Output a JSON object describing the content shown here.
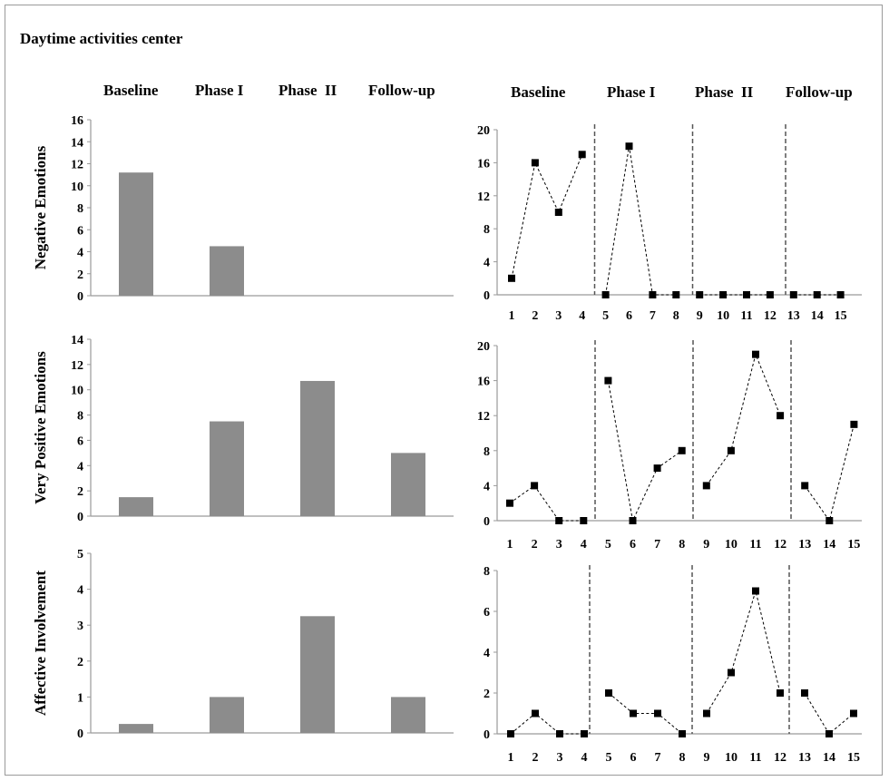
{
  "title": "Daytime activities center",
  "phase_labels": [
    "Baseline",
    "Phase I",
    "Phase  II",
    "Follow-up"
  ],
  "chart_data": [
    {
      "type": "bar",
      "panel": "negative-bar",
      "ylabel": "Negative Emotions",
      "categories": [
        "Baseline",
        "Phase I",
        "Phase  II",
        "Follow-up"
      ],
      "values": [
        11.2,
        4.5,
        0,
        0
      ],
      "ylim": [
        0,
        16
      ],
      "yticks": [
        0,
        2,
        4,
        6,
        8,
        10,
        12,
        14,
        16
      ],
      "color": "#8c8c8c"
    },
    {
      "type": "line",
      "panel": "negative-line",
      "x": [
        1,
        2,
        3,
        4,
        5,
        6,
        7,
        8,
        9,
        10,
        11,
        12,
        13,
        14,
        15
      ],
      "y": [
        2,
        16,
        10,
        17,
        0,
        18,
        0,
        0,
        0,
        0,
        0,
        0,
        0,
        0,
        0
      ],
      "segments": [
        [
          1,
          4
        ],
        [
          5,
          8
        ],
        [
          9,
          12
        ],
        [
          13,
          15
        ]
      ],
      "ylim": [
        0,
        20
      ],
      "yticks": [
        0,
        4,
        8,
        12,
        16,
        20
      ]
    },
    {
      "type": "bar",
      "panel": "positive-bar",
      "ylabel": "Very Positive Emotions",
      "categories": [
        "Baseline",
        "Phase I",
        "Phase  II",
        "Follow-up"
      ],
      "values": [
        1.5,
        7.5,
        10.7,
        5
      ],
      "ylim": [
        0,
        14
      ],
      "yticks": [
        0,
        2,
        4,
        6,
        8,
        10,
        12,
        14
      ],
      "color": "#8c8c8c"
    },
    {
      "type": "line",
      "panel": "positive-line",
      "x": [
        1,
        2,
        3,
        4,
        5,
        6,
        7,
        8,
        9,
        10,
        11,
        12,
        13,
        14,
        15
      ],
      "y": [
        2,
        4,
        0,
        0,
        16,
        0,
        6,
        8,
        4,
        8,
        19,
        12,
        4,
        0,
        11
      ],
      "segments": [
        [
          1,
          4
        ],
        [
          5,
          8
        ],
        [
          9,
          12
        ],
        [
          13,
          15
        ]
      ],
      "ylim": [
        0,
        20
      ],
      "yticks": [
        0,
        4,
        8,
        12,
        16,
        20
      ]
    },
    {
      "type": "bar",
      "panel": "involvement-bar",
      "ylabel": "Affective Involvement",
      "categories": [
        "Baseline",
        "Phase I",
        "Phase  II",
        "Follow-up"
      ],
      "values": [
        0.25,
        1,
        3.25,
        1
      ],
      "ylim": [
        0,
        5
      ],
      "yticks": [
        0,
        1,
        2,
        3,
        4,
        5
      ],
      "color": "#8c8c8c"
    },
    {
      "type": "line",
      "panel": "involvement-line",
      "x": [
        1,
        2,
        3,
        4,
        5,
        6,
        7,
        8,
        9,
        10,
        11,
        12,
        13,
        14,
        15
      ],
      "y": [
        0,
        1,
        0,
        0,
        2,
        1,
        1,
        0,
        1,
        3,
        7,
        2,
        2,
        0,
        1
      ],
      "segments": [
        [
          1,
          4
        ],
        [
          5,
          8
        ],
        [
          9,
          12
        ],
        [
          13,
          15
        ]
      ],
      "ylim": [
        0,
        8
      ],
      "yticks": [
        0,
        2,
        4,
        6,
        8
      ]
    }
  ]
}
